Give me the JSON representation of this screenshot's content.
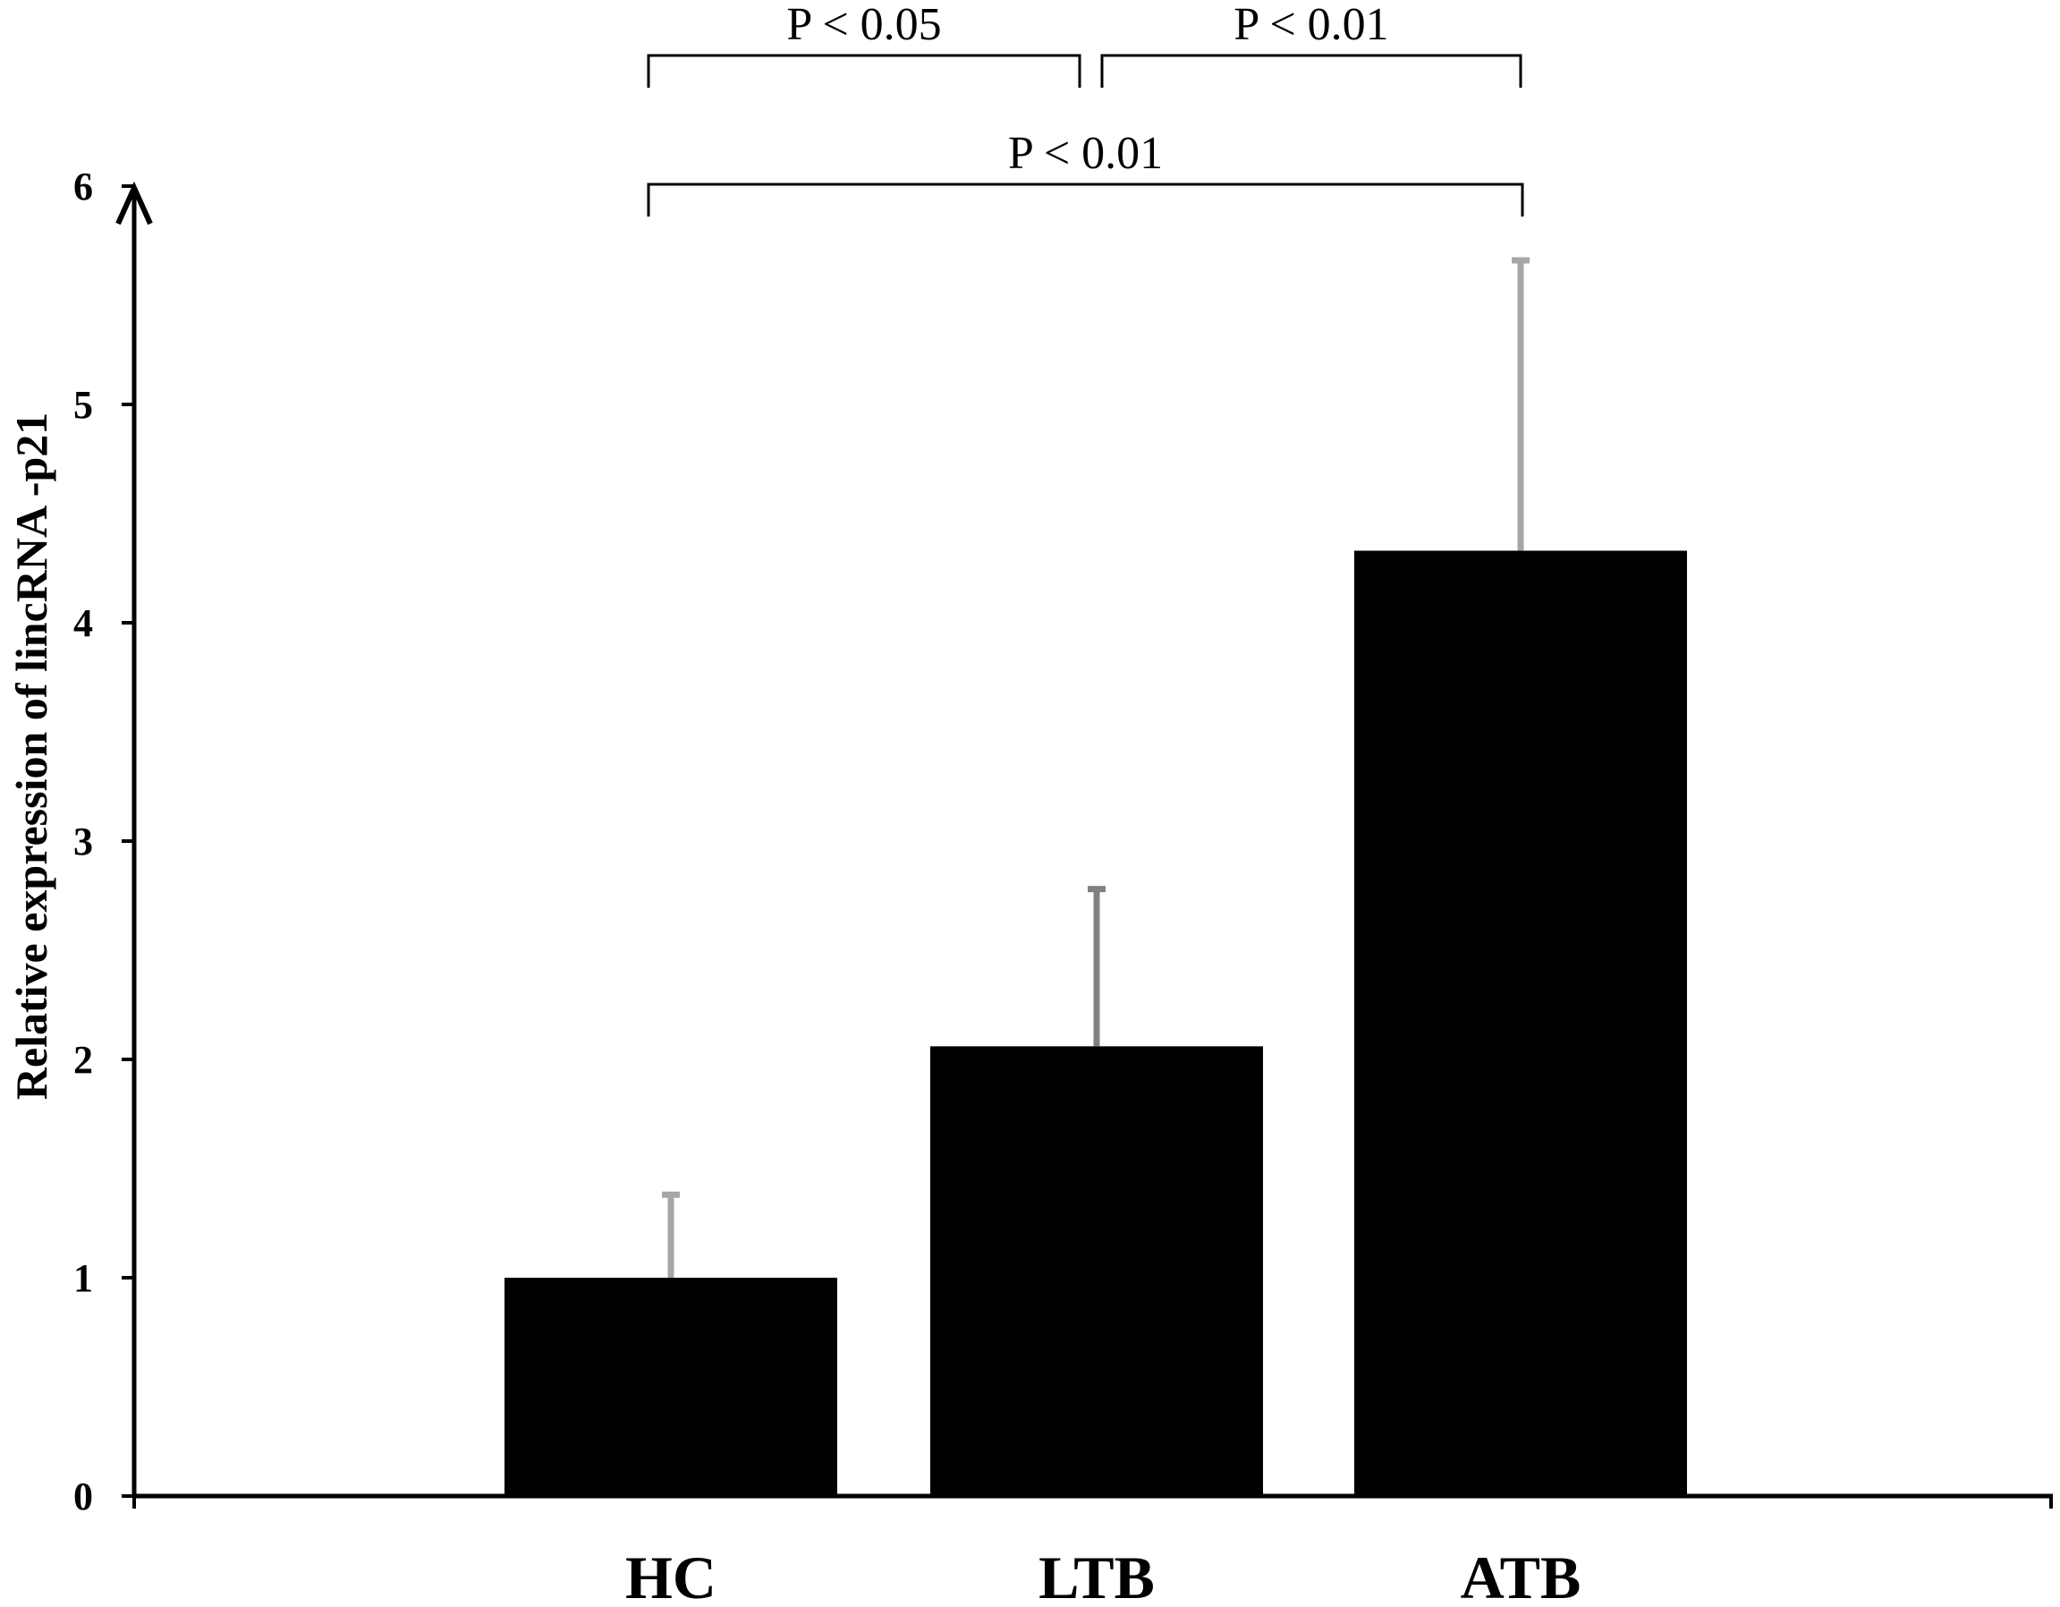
{
  "chart_data": {
    "type": "bar",
    "categories": [
      "HC",
      "LTB",
      "ATB"
    ],
    "values": [
      1.0,
      2.06,
      4.33
    ],
    "error_bars": [
      0.38,
      0.72,
      1.33
    ],
    "ylabel": "Relative expression of lincRNA -p21",
    "xlabel": "",
    "ylim": [
      0,
      6
    ],
    "yticks": [
      0,
      1,
      2,
      3,
      4,
      5,
      6
    ],
    "grid": false,
    "bar_color": "#000000",
    "error_bar_colors": [
      "#a6a6a6",
      "#808080",
      "#a6a6a6"
    ],
    "significance": [
      {
        "from": "HC",
        "to": "LTB",
        "label": "P < 0.05"
      },
      {
        "from": "LTB",
        "to": "ATB",
        "label": "P < 0.01"
      },
      {
        "from": "HC",
        "to": "ATB",
        "label": "P < 0.01"
      }
    ]
  }
}
